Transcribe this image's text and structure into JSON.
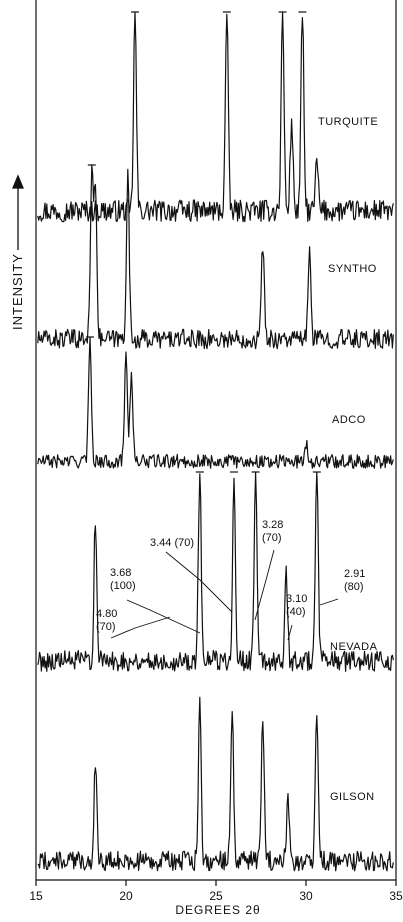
{
  "chart_data": {
    "type": "line",
    "title": "",
    "xlabel": "DEGREES 2θ",
    "ylabel": "INTENSITY",
    "xlim": [
      15,
      35
    ],
    "xticks": [
      "15",
      "20",
      "25",
      "30",
      "35"
    ],
    "colors": {
      "ink": "#111111",
      "paper": "#ffffff"
    },
    "series": [
      {
        "name": "TURQUITE",
        "peaks": [
          [
            20.5,
            1.0
          ],
          [
            25.6,
            1.0
          ],
          [
            28.7,
            1.0
          ],
          [
            29.8,
            1.0
          ],
          [
            29.2,
            0.45
          ],
          [
            30.6,
            0.25
          ]
        ]
      },
      {
        "name": "SYNTHO",
        "peaks": [
          [
            18.1,
            1.0
          ],
          [
            18.3,
            0.9
          ],
          [
            20.1,
            0.95
          ],
          [
            27.6,
            0.55
          ],
          [
            30.2,
            0.5
          ]
        ]
      },
      {
        "name": "ADCO",
        "peaks": [
          [
            18.0,
            1.0
          ],
          [
            20.0,
            0.9
          ],
          [
            20.3,
            0.7
          ],
          [
            30.0,
            0.15
          ]
        ]
      },
      {
        "name": "NEVADA",
        "peaks": [
          [
            18.3,
            0.75
          ],
          [
            24.1,
            1.0
          ],
          [
            26.0,
            1.0
          ],
          [
            27.2,
            1.0
          ],
          [
            28.9,
            0.45
          ],
          [
            30.6,
            1.0
          ]
        ]
      },
      {
        "name": "GILSON",
        "peaks": [
          [
            18.3,
            0.55
          ],
          [
            24.1,
            0.9
          ],
          [
            25.9,
            0.85
          ],
          [
            27.6,
            0.8
          ],
          [
            29.0,
            0.35
          ],
          [
            30.6,
            0.85
          ]
        ]
      }
    ],
    "annotations": [
      {
        "label": "4.80",
        "sub": "(70)"
      },
      {
        "label": "3.68",
        "sub": "(100)"
      },
      {
        "label": "3.44 (70)",
        "sub": ""
      },
      {
        "label": "3.28",
        "sub": "(70)"
      },
      {
        "label": "3.10",
        "sub": "(40)"
      },
      {
        "label": "2.91",
        "sub": "(80)"
      }
    ]
  }
}
